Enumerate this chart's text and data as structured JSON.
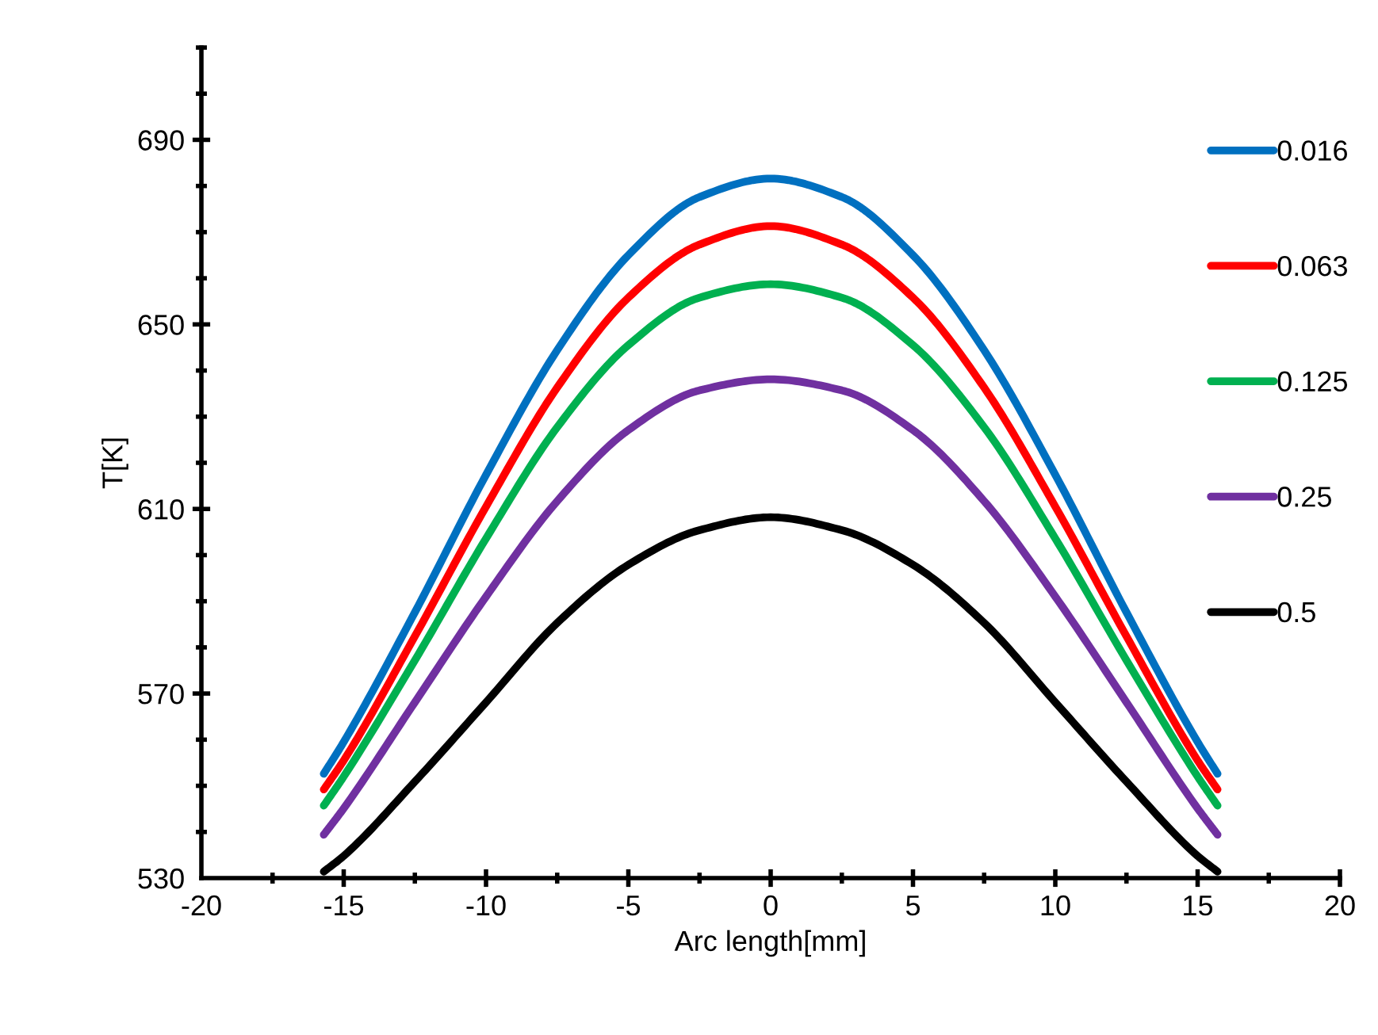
{
  "chart_data": {
    "type": "line",
    "xlabel": "Arc length[mm]",
    "ylabel": "T[K]",
    "x": [
      -15.7,
      -15,
      -12.5,
      -10,
      -7.5,
      -5,
      -2.5,
      0,
      2.5,
      5,
      7.5,
      10,
      12.5,
      15,
      15.7
    ],
    "series": [
      {
        "name": "0.016",
        "color": "#0070c0",
        "values": [
          552.6,
          559.5,
          587.6,
          617.4,
          644.4,
          665.0,
          677.6,
          681.6,
          677.6,
          665.0,
          644.4,
          617.4,
          587.6,
          559.5,
          552.6
        ]
      },
      {
        "name": "0.063",
        "color": "#ff0000",
        "values": [
          549.2,
          555.5,
          582.4,
          610.5,
          636.3,
          655.8,
          667.3,
          671.3,
          667.3,
          655.8,
          636.3,
          610.5,
          582.4,
          555.5,
          549.2
        ]
      },
      {
        "name": "0.125",
        "color": "#00b050",
        "values": [
          545.7,
          552.0,
          577.2,
          603.6,
          627.7,
          645.5,
          655.8,
          658.7,
          655.8,
          645.5,
          627.7,
          603.6,
          577.2,
          552.0,
          545.7
        ]
      },
      {
        "name": "0.25",
        "color": "#7030a0",
        "values": [
          539.4,
          545.1,
          568.1,
          591.0,
          611.7,
          627.1,
          635.7,
          638.1,
          635.7,
          627.1,
          611.7,
          591.0,
          568.1,
          545.1,
          539.4
        ]
      },
      {
        "name": "0.5",
        "color": "#000000",
        "values": [
          531.4,
          534.8,
          550.9,
          568.1,
          585.3,
          597.9,
          605.4,
          608.2,
          605.4,
          597.9,
          585.3,
          568.1,
          550.9,
          534.8,
          531.4
        ]
      }
    ],
    "xlim": [
      -20,
      20
    ],
    "xticks": [
      -20,
      -15,
      -10,
      -5,
      0,
      5,
      10,
      15,
      20
    ],
    "ylim": [
      530,
      710
    ],
    "yticks": [
      530,
      570,
      610,
      650,
      690
    ],
    "grid": false,
    "legend": "right",
    "marker": "none",
    "line_style": "solid"
  }
}
